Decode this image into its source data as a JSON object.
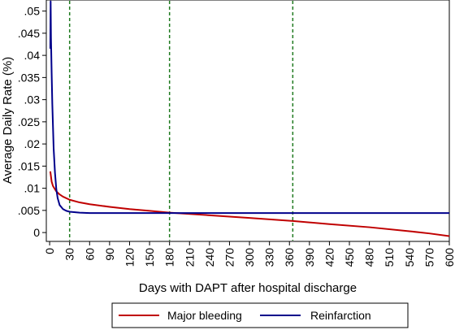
{
  "chart_data": {
    "type": "line",
    "xlabel": "Days with DAPT after hospital discharge",
    "ylabel": "Average Daily Rate (%)",
    "xlim": [
      -5,
      600
    ],
    "ylim": [
      -0.002,
      0.0525
    ],
    "x_ticks": [
      0,
      30,
      60,
      90,
      120,
      150,
      180,
      210,
      240,
      270,
      300,
      330,
      360,
      390,
      420,
      450,
      480,
      510,
      540,
      570,
      600
    ],
    "y_ticks": [
      0,
      0.005,
      0.01,
      0.015,
      0.02,
      0.025,
      0.03,
      0.035,
      0.04,
      0.045,
      0.05
    ],
    "y_tick_labels": [
      "0",
      ".005",
      ".01",
      ".015",
      ".02",
      ".025",
      ".03",
      ".035",
      ".04",
      ".045",
      ".05"
    ],
    "reference_lines_x": [
      30,
      180,
      365
    ],
    "legend_position": "bottom",
    "series": [
      {
        "name": "Major bleeding",
        "color": "#c00000",
        "x": [
          1,
          3,
          5,
          10,
          15,
          20,
          30,
          45,
          60,
          90,
          120,
          150,
          180,
          240,
          300,
          365,
          420,
          480,
          540,
          570,
          600
        ],
        "y": [
          0.0138,
          0.0115,
          0.0105,
          0.0093,
          0.0086,
          0.0081,
          0.0074,
          0.0068,
          0.0064,
          0.0058,
          0.0053,
          0.0049,
          0.0045,
          0.0039,
          0.0033,
          0.0026,
          0.0019,
          0.0012,
          0.0003,
          -0.0002,
          -0.0008
        ]
      },
      {
        "name": "Reinfarction",
        "color": "#00008b",
        "x": [
          1,
          1.5,
          2,
          3,
          4,
          5,
          6,
          8,
          10,
          12,
          15,
          20,
          25,
          30,
          45,
          60,
          90,
          180,
          300,
          450,
          600
        ],
        "y": [
          0.0415,
          0.0522,
          0.044,
          0.036,
          0.029,
          0.024,
          0.019,
          0.0135,
          0.0098,
          0.0078,
          0.0062,
          0.0053,
          0.0049,
          0.0047,
          0.0045,
          0.0044,
          0.0044,
          0.0044,
          0.0044,
          0.0044,
          0.0044
        ]
      }
    ]
  }
}
